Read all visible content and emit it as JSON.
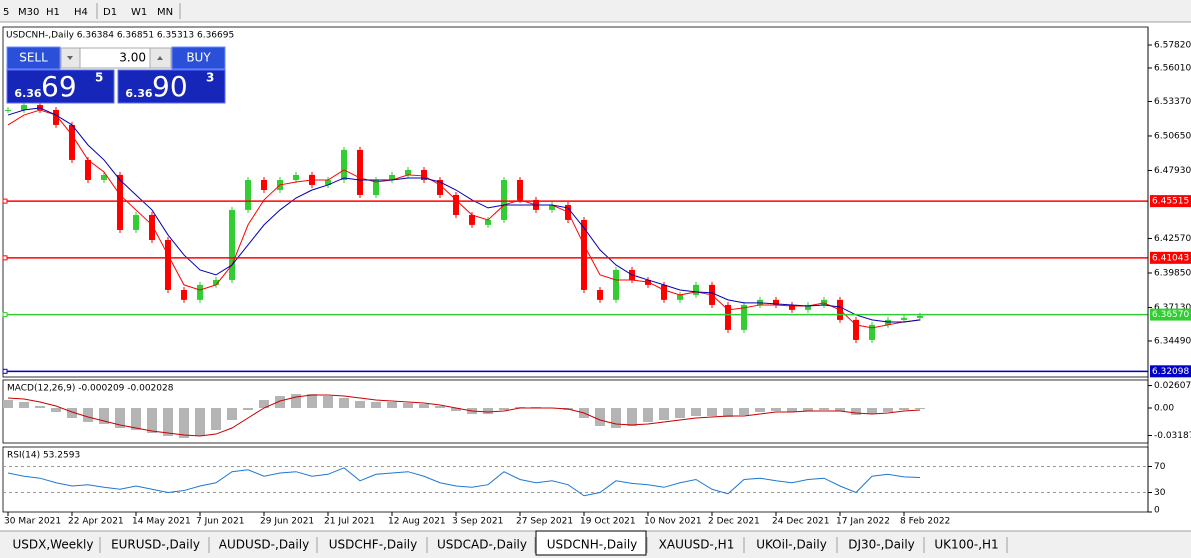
{
  "toolbar": {
    "timeframes": [
      "5",
      "M30",
      "H1",
      "H4",
      "D1",
      "W1",
      "MN"
    ]
  },
  "trade_panel": {
    "sell": "SELL",
    "buy": "BUY",
    "volume": "3.00",
    "bid": {
      "big": "6.36",
      "pips": "69",
      "fraction": "5"
    },
    "ask": {
      "big": "6.36",
      "pips": "90",
      "fraction": "3"
    }
  },
  "chart_data": [
    {
      "type": "candlestick",
      "title": "USDCNH-,Daily 6.36384 6.36851 6.35313 6.36695",
      "up_color": "#32cd32",
      "down_color": "#ff0000",
      "close": [
        6.527,
        6.5309,
        6.527,
        6.5152,
        6.4876,
        6.4718,
        6.4758,
        6.4324,
        6.4442,
        6.4245,
        6.3851,
        6.3773,
        6.3891,
        6.393,
        6.4482,
        6.4718,
        6.4639,
        6.4718,
        6.4758,
        6.4679,
        6.4718,
        6.4955,
        6.46,
        6.4718,
        6.4758,
        6.4797,
        6.4718,
        6.46,
        6.4442,
        6.4364,
        6.4403,
        6.4718,
        6.4561,
        6.4482,
        6.4521,
        6.4403,
        6.3851,
        6.3773,
        6.4009,
        6.393,
        6.3891,
        6.3773,
        6.3812,
        6.3891,
        6.3733,
        6.3536,
        6.3733,
        6.3773,
        6.3733,
        6.3694,
        6.3733,
        6.3773,
        6.3615,
        6.3457,
        6.3576,
        6.3615,
        6.3631,
        6.3647
      ],
      "ma_lines": [
        {
          "color": "#ff0000",
          "values": [
            6.5152,
            6.523,
            6.527,
            6.523,
            6.5073,
            6.4876,
            6.4781,
            6.46,
            6.4482,
            6.4364,
            6.4127,
            6.3891,
            6.3851,
            6.3891,
            6.4048,
            6.4364,
            6.4561,
            6.4679,
            6.4702,
            6.4718,
            6.4718,
            6.4797,
            6.4734,
            6.4702,
            6.4718,
            6.4758,
            6.475,
            6.4679,
            6.4561,
            6.4442,
            6.4403,
            6.4521,
            6.4561,
            6.4521,
            6.4521,
            6.4466,
            6.4206,
            6.397,
            6.393,
            6.393,
            6.3914,
            6.3851,
            6.3812,
            6.3836,
            6.3812,
            6.3694,
            6.371,
            6.3733,
            6.3733,
            6.3725,
            6.3725,
            6.3749,
            6.3694,
            6.3576,
            6.3552,
            6.3576,
            6.3599,
            6.3615
          ]
        },
        {
          "color": "#0000b4",
          "values": [
            6.523,
            6.527,
            6.5286,
            6.523,
            6.5152,
            6.4994,
            6.4876,
            6.4718,
            6.46,
            6.4482,
            6.4285,
            6.4127,
            6.4009,
            6.397,
            6.4048,
            6.4206,
            6.4364,
            6.4482,
            6.4576,
            6.4639,
            6.4679,
            6.4734,
            6.4718,
            6.4718,
            6.4718,
            6.4734,
            6.4734,
            6.4702,
            6.4639,
            6.4561,
            6.4498,
            6.4521,
            6.4521,
            6.4521,
            6.4521,
            6.4498,
            6.434,
            6.4167,
            6.4048,
            6.397,
            6.393,
            6.3891,
            6.3851,
            6.3836,
            6.3828,
            6.3773,
            6.3749,
            6.3749,
            6.3741,
            6.3733,
            6.3725,
            6.3733,
            6.3717,
            6.3654,
            6.3615,
            6.3599,
            6.3599,
            6.3615
          ]
        }
      ],
      "levels": [
        {
          "value": 6.45515,
          "label": "6.45515",
          "color": "#ff0000"
        },
        {
          "value": 6.41043,
          "label": "6.41043",
          "color": "#ff0000"
        },
        {
          "value": 6.3657,
          "label": "6.36570",
          "color": "#32cd32"
        },
        {
          "value": 6.32098,
          "label": "6.32098",
          "color": "#0000c8"
        }
      ],
      "ylim": [
        6.3165,
        6.5924
      ],
      "yticks": [
        {
          "value": 6.5782,
          "label": "6.57820"
        },
        {
          "value": 6.5601,
          "label": "6.56010"
        },
        {
          "value": 6.5337,
          "label": "6.53370"
        },
        {
          "value": 6.5065,
          "label": "6.50650"
        },
        {
          "value": 6.4793,
          "label": "6.47930"
        },
        {
          "value": 6.4257,
          "label": "6.42570"
        },
        {
          "value": 6.3985,
          "label": "6.39850"
        },
        {
          "value": 6.3713,
          "label": "6.37130"
        },
        {
          "value": 6.3449,
          "label": "6.34490"
        }
      ]
    },
    {
      "type": "macd",
      "title": "MACD(12,26,9) -0.000209 -0.002028",
      "hist_color": "#b4b4b4",
      "signal_color": "#c80000",
      "histogram": [
        0.0093,
        0.007,
        0.0023,
        -0.0046,
        -0.0116,
        -0.0162,
        -0.0186,
        -0.0232,
        -0.0255,
        -0.029,
        -0.0325,
        -0.0348,
        -0.0325,
        -0.0255,
        -0.0139,
        -0.0023,
        0.0093,
        0.0139,
        0.0162,
        0.0162,
        0.0139,
        0.0116,
        0.0081,
        0.007,
        0.007,
        0.0058,
        0.0046,
        0.0023,
        -0.0035,
        -0.007,
        -0.007,
        -0.0023,
        0.0012,
        0.0012,
        0,
        -0.0023,
        -0.0116,
        -0.0209,
        -0.0232,
        -0.0209,
        -0.0162,
        -0.0139,
        -0.0116,
        -0.0093,
        -0.0093,
        -0.0104,
        -0.0081,
        -0.0046,
        -0.0035,
        -0.0046,
        -0.0035,
        -0.0023,
        -0.0035,
        -0.0081,
        -0.007,
        -0.0046,
        -0.0023,
        -0.0012
      ],
      "signal": [
        0.0116,
        0.0104,
        0.007,
        0.0023,
        -0.0046,
        -0.0104,
        -0.0151,
        -0.0197,
        -0.0232,
        -0.0267,
        -0.029,
        -0.0313,
        -0.0325,
        -0.0302,
        -0.0232,
        -0.0116,
        0,
        0.0081,
        0.0128,
        0.0151,
        0.0151,
        0.0139,
        0.0116,
        0.0093,
        0.0081,
        0.007,
        0.0058,
        0.0035,
        0,
        -0.0035,
        -0.0046,
        -0.0035,
        0,
        0,
        0,
        -0.0012,
        -0.0058,
        -0.0139,
        -0.0186,
        -0.0197,
        -0.0186,
        -0.0162,
        -0.0139,
        -0.0116,
        -0.0104,
        -0.0093,
        -0.0093,
        -0.007,
        -0.0046,
        -0.0046,
        -0.0035,
        -0.0035,
        -0.0035,
        -0.0058,
        -0.007,
        -0.0058,
        -0.0035,
        -0.0023
      ],
      "ylim": [
        -0.0406,
        0.0325
      ],
      "yticks": [
        0.02607,
        {
          "value": 0,
          "label": "0.00"
        },
        -0.03187
      ]
    },
    {
      "type": "line",
      "title": "RSI(14) 53.2593",
      "color": "#1e78d2",
      "grid": "dashed",
      "values": [
        60,
        55,
        52,
        45,
        40,
        42,
        38,
        35,
        40,
        35,
        30,
        33,
        40,
        45,
        62,
        65,
        55,
        60,
        62,
        55,
        58,
        68,
        48,
        58,
        60,
        62,
        55,
        45,
        40,
        38,
        42,
        62,
        50,
        45,
        48,
        42,
        25,
        30,
        48,
        44,
        42,
        38,
        45,
        50,
        35,
        28,
        50,
        52,
        48,
        45,
        50,
        52,
        40,
        30,
        55,
        58,
        54,
        53
      ],
      "ylim": [
        0,
        100
      ],
      "yticks": [
        70,
        30,
        0
      ]
    }
  ],
  "x_labels": [
    "30 Mar 2021",
    "22 Apr 2021",
    "14 May 2021",
    "7 Jun 2021",
    "29 Jun 2021",
    "21 Jul 2021",
    "12 Aug 2021",
    "3 Sep 2021",
    "27 Sep 2021",
    "19 Oct 2021",
    "10 Nov 2021",
    "2 Dec 2021",
    "24 Dec 2021",
    "17 Jan 2022",
    "8 Feb 2022"
  ],
  "tabs": [
    "USDX,Weekly",
    "EURUSD-,Daily",
    "AUDUSD-,Daily",
    "USDCHF-,Daily",
    "USDCAD-,Daily",
    "USDCNH-,Daily",
    "XAUUSD-,H1",
    "UKOil-,Daily",
    "DJ30-,Daily",
    "UK100-,H1"
  ],
  "active_tab": 5
}
